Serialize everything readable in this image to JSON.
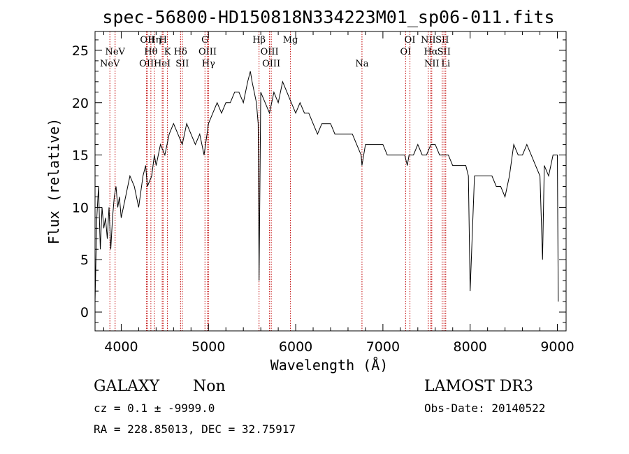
{
  "chart_data": {
    "type": "line",
    "title": "spec-56800-HD150818N334223M01_sp06-011.fits",
    "xlabel": "Wavelength (Å)",
    "ylabel": "Flux (relative)",
    "xlim": [
      3700,
      9100
    ],
    "ylim": [
      -1.8,
      26.8
    ],
    "xticks": [
      4000,
      5000,
      6000,
      7000,
      8000,
      9000
    ],
    "yticks": [
      0,
      5,
      10,
      15,
      20,
      25
    ],
    "grid": false,
    "series": [
      {
        "x": [
          3700,
          3720,
          3740,
          3760,
          3780,
          3800,
          3820,
          3840,
          3860,
          3880,
          3900,
          3920,
          3940,
          3960,
          3980,
          4000,
          4050,
          4100,
          4150,
          4200,
          4250,
          4280,
          4300,
          4350,
          4380,
          4400,
          4450,
          4500,
          4550,
          4600,
          4650,
          4700,
          4750,
          4800,
          4850,
          4900,
          4950,
          5000,
          5050,
          5100,
          5150,
          5200,
          5250,
          5300,
          5350,
          5400,
          5450,
          5480,
          5500,
          5550,
          5570,
          5580,
          5600,
          5650,
          5700,
          5750,
          5800,
          5850,
          5900,
          5950,
          6000,
          6050,
          6100,
          6150,
          6200,
          6250,
          6300,
          6350,
          6400,
          6450,
          6500,
          6550,
          6600,
          6650,
          6700,
          6750,
          6760,
          6800,
          6850,
          6900,
          6950,
          7000,
          7050,
          7100,
          7150,
          7200,
          7250,
          7280,
          7300,
          7350,
          7400,
          7450,
          7500,
          7550,
          7600,
          7650,
          7700,
          7750,
          7800,
          7850,
          7900,
          7950,
          7980,
          8000,
          8050,
          8100,
          8150,
          8200,
          8250,
          8300,
          8350,
          8400,
          8450,
          8500,
          8550,
          8600,
          8650,
          8700,
          8750,
          8800,
          8830,
          8850,
          8900,
          8950,
          9000,
          9010
        ],
        "values": [
          1,
          9,
          12,
          6,
          10,
          8,
          9,
          7,
          10,
          6,
          9,
          11,
          12,
          10,
          11,
          9,
          11,
          13,
          12,
          10,
          13,
          14,
          12,
          13,
          15,
          14,
          16,
          15,
          17,
          18,
          17,
          16,
          18,
          17,
          16,
          17,
          15,
          18,
          19,
          20,
          19,
          20,
          20,
          21,
          21,
          20,
          22,
          23,
          22,
          20,
          18,
          3,
          21,
          20,
          19,
          21,
          20,
          22,
          21,
          20,
          19,
          20,
          19,
          19,
          18,
          17,
          18,
          18,
          18,
          17,
          17,
          17,
          17,
          17,
          16,
          15,
          14,
          16,
          16,
          16,
          16,
          16,
          15,
          15,
          15,
          15,
          15,
          14,
          15,
          15,
          16,
          15,
          15,
          16,
          16,
          15,
          15,
          15,
          14,
          14,
          14,
          14,
          13,
          2,
          13,
          13,
          13,
          13,
          13,
          12,
          12,
          11,
          13,
          16,
          15,
          15,
          16,
          15,
          14,
          13,
          5,
          14,
          13,
          15,
          15,
          1
        ]
      }
    ],
    "lines": [
      {
        "name": "NeV",
        "x": 3870,
        "row": 2
      },
      {
        "name": "NeV",
        "x": 3930,
        "row": 1
      },
      {
        "name": "OII",
        "x": 4290,
        "row": 2
      },
      {
        "name": "OII",
        "x": 4300,
        "row": 0
      },
      {
        "name": "Hθ",
        "x": 4340,
        "row": 1
      },
      {
        "name": "Hη",
        "x": 4380,
        "row": 0
      },
      {
        "name": "HeI",
        "x": 4470,
        "row": 2
      },
      {
        "name": "H",
        "x": 4480,
        "row": 0
      },
      {
        "name": "K",
        "x": 4530,
        "row": 1
      },
      {
        "name": "Hδ",
        "x": 4680,
        "row": 1
      },
      {
        "name": "SII",
        "x": 4700,
        "row": 2
      },
      {
        "name": "G",
        "x": 4960,
        "row": 0
      },
      {
        "name": "OIII",
        "x": 4990,
        "row": 1
      },
      {
        "name": "Hγ",
        "x": 5000,
        "row": 2
      },
      {
        "name": "Hβ",
        "x": 5580,
        "row": 0
      },
      {
        "name": "OIII",
        "x": 5700,
        "row": 1
      },
      {
        "name": "OIII",
        "x": 5720,
        "row": 2
      },
      {
        "name": "Mg",
        "x": 5940,
        "row": 0
      },
      {
        "name": "Na",
        "x": 6760,
        "row": 2
      },
      {
        "name": "OI",
        "x": 7260,
        "row": 1
      },
      {
        "name": "OI",
        "x": 7310,
        "row": 0
      },
      {
        "name": "NII",
        "x": 7520,
        "row": 0
      },
      {
        "name": "Hα",
        "x": 7550,
        "row": 1
      },
      {
        "name": "NII",
        "x": 7560,
        "row": 2
      },
      {
        "name": "SII",
        "x": 7680,
        "row": 0
      },
      {
        "name": "SII",
        "x": 7700,
        "row": 1
      },
      {
        "name": "Li",
        "x": 7720,
        "row": 2
      }
    ]
  },
  "info": {
    "class": "GALAXY",
    "subclass": "Non",
    "release": "LAMOST DR3",
    "cz": "cz = 0.1 ± -9999.0",
    "obs_date": "Obs-Date: 20140522",
    "radec": "RA = 228.85013, DEC =  32.75917"
  },
  "colors": {
    "spectrum": "#000000",
    "line_markers": "#c00000"
  }
}
